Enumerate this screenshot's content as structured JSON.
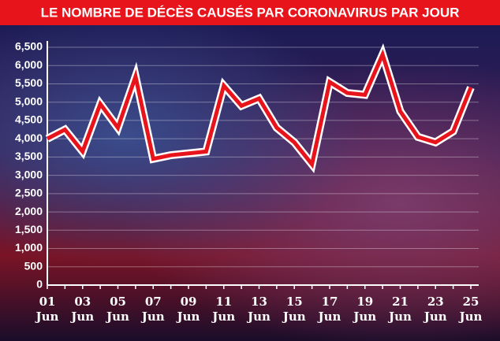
{
  "chart_data": {
    "type": "line",
    "title": "LE NOMBRE DE DÉCÈS CAUSÉS PAR CORONAVIRUS PAR JOUR",
    "categories": [
      "01 Jun",
      null,
      "03 Jun",
      null,
      "05 Jun",
      null,
      "07 Jun",
      null,
      "09 Jun",
      null,
      "11 Jun",
      null,
      "13 Jun",
      null,
      "15 Jun",
      null,
      "17 Jun",
      null,
      "19 Jun",
      null,
      "21 Jun",
      null,
      "23 Jun",
      null,
      "25 Jun"
    ],
    "values": [
      4000,
      4250,
      3650,
      4950,
      4300,
      5700,
      3450,
      3550,
      3600,
      3650,
      5450,
      4900,
      5100,
      4300,
      3900,
      3300,
      5550,
      5250,
      5200,
      6300,
      4750,
      4050,
      3900,
      4200,
      5400
    ],
    "color": "#e8141b",
    "ylim": [
      0,
      6500
    ],
    "yticks": [
      0,
      500,
      {
        "value": 1000,
        "label": "1,000"
      },
      {
        "value": 1500,
        "label": "1,500"
      },
      {
        "value": 2000,
        "label": "2,000"
      },
      {
        "value": 2500,
        "label": "2,500"
      },
      {
        "value": 3000,
        "label": "3,000"
      },
      {
        "value": 3500,
        "label": "3,500"
      },
      {
        "value": 4000,
        "label": "4,000"
      },
      {
        "value": 4500,
        "label": "4,500"
      },
      {
        "value": 5000,
        "label": "5,000"
      },
      {
        "value": 5500,
        "label": "5,500"
      },
      {
        "value": 6000,
        "label": "6,000"
      },
      {
        "value": 6500,
        "label": "6,500"
      }
    ],
    "grid": true
  }
}
